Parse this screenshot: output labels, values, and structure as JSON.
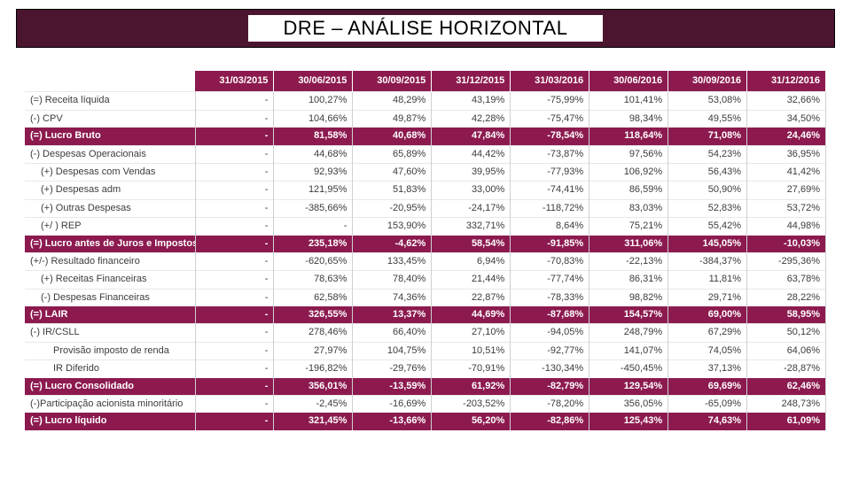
{
  "title": "DRE – ANÁLISE HORIZONTAL",
  "colors": {
    "title_bg": "#4b1530",
    "header_bg": "#8c1a4f",
    "section_bg": "#8c1a4f",
    "text": "#3c3c3c",
    "white": "#ffffff",
    "border": "#d0d0d0"
  },
  "table": {
    "columns": [
      "31/03/2015",
      "30/06/2015",
      "30/09/2015",
      "31/12/2015",
      "31/03/2016",
      "30/06/2016",
      "30/09/2016",
      "31/12/2016"
    ],
    "rows": [
      {
        "type": "normal",
        "indent": 0,
        "label": "(=) Receita líquida",
        "vals": [
          "-",
          "100,27%",
          "48,29%",
          "43,19%",
          "-75,99%",
          "101,41%",
          "53,08%",
          "32,66%"
        ]
      },
      {
        "type": "normal",
        "indent": 0,
        "label": "(-) CPV",
        "vals": [
          "-",
          "104,66%",
          "49,87%",
          "42,28%",
          "-75,47%",
          "98,34%",
          "49,55%",
          "34,50%"
        ]
      },
      {
        "type": "section",
        "indent": 0,
        "label": "(=) Lucro Bruto",
        "vals": [
          "-",
          "81,58%",
          "40,68%",
          "47,84%",
          "-78,54%",
          "118,64%",
          "71,08%",
          "24,46%"
        ]
      },
      {
        "type": "normal",
        "indent": 0,
        "label": "(-) Despesas Operacionais",
        "vals": [
          "-",
          "44,68%",
          "65,89%",
          "44,42%",
          "-73,87%",
          "97,56%",
          "54,23%",
          "36,95%"
        ]
      },
      {
        "type": "normal",
        "indent": 1,
        "label": "(+) Despesas com Vendas",
        "vals": [
          "-",
          "92,93%",
          "47,60%",
          "39,95%",
          "-77,93%",
          "106,92%",
          "56,43%",
          "41,42%"
        ]
      },
      {
        "type": "normal",
        "indent": 1,
        "label": "(+) Despesas adm",
        "vals": [
          "-",
          "121,95%",
          "51,83%",
          "33,00%",
          "-74,41%",
          "86,59%",
          "50,90%",
          "27,69%"
        ]
      },
      {
        "type": "normal",
        "indent": 1,
        "label": "(+) Outras Despesas",
        "vals": [
          "-",
          "-385,66%",
          "-20,95%",
          "-24,17%",
          "-118,72%",
          "83,03%",
          "52,83%",
          "53,72%"
        ]
      },
      {
        "type": "normal",
        "indent": 1,
        "label": "(+/ ) REP",
        "vals": [
          "-",
          "-",
          "153,90%",
          "332,71%",
          "8,64%",
          "75,21%",
          "55,42%",
          "44,98%"
        ]
      },
      {
        "type": "section",
        "indent": 0,
        "label": "(=) Lucro antes de Juros e Impostos",
        "vals": [
          "-",
          "235,18%",
          "-4,62%",
          "58,54%",
          "-91,85%",
          "311,06%",
          "145,05%",
          "-10,03%"
        ]
      },
      {
        "type": "normal",
        "indent": 0,
        "label": "(+/-) Resultado financeiro",
        "vals": [
          "-",
          "-620,65%",
          "133,45%",
          "6,94%",
          "-70,83%",
          "-22,13%",
          "-384,37%",
          "-295,36%"
        ]
      },
      {
        "type": "normal",
        "indent": 1,
        "label": "(+) Receitas Financeiras",
        "vals": [
          "-",
          "78,63%",
          "78,40%",
          "21,44%",
          "-77,74%",
          "86,31%",
          "11,81%",
          "63,78%"
        ]
      },
      {
        "type": "normal",
        "indent": 1,
        "label": "(-) Despesas Financeiras",
        "vals": [
          "-",
          "62,58%",
          "74,36%",
          "22,87%",
          "-78,33%",
          "98,82%",
          "29,71%",
          "28,22%"
        ]
      },
      {
        "type": "section",
        "indent": 0,
        "label": "(=) LAIR",
        "vals": [
          "-",
          "326,55%",
          "13,37%",
          "44,69%",
          "-87,68%",
          "154,57%",
          "69,00%",
          "58,95%"
        ]
      },
      {
        "type": "normal",
        "indent": 0,
        "label": "(-) IR/CSLL",
        "vals": [
          "-",
          "278,46%",
          "66,40%",
          "27,10%",
          "-94,05%",
          "248,79%",
          "67,29%",
          "50,12%"
        ]
      },
      {
        "type": "normal",
        "indent": 2,
        "label": "Provisão imposto de renda",
        "vals": [
          "-",
          "27,97%",
          "104,75%",
          "10,51%",
          "-92,77%",
          "141,07%",
          "74,05%",
          "64,06%"
        ]
      },
      {
        "type": "normal",
        "indent": 2,
        "label": "IR Diferido",
        "vals": [
          "-",
          "-196,82%",
          "-29,76%",
          "-70,91%",
          "-130,34%",
          "-450,45%",
          "37,13%",
          "-28,87%"
        ]
      },
      {
        "type": "section",
        "indent": 0,
        "label": "(=) Lucro Consolidado",
        "vals": [
          "-",
          "356,01%",
          "-13,59%",
          "61,92%",
          "-82,79%",
          "129,54%",
          "69,69%",
          "62,46%"
        ]
      },
      {
        "type": "normal",
        "indent": 0,
        "label": "(-)Participação acionista minoritário",
        "vals": [
          "-",
          "-2,45%",
          "-16,69%",
          "-203,52%",
          "-78,20%",
          "356,05%",
          "-65,09%",
          "248,73%"
        ]
      },
      {
        "type": "section",
        "indent": 0,
        "label": "(=) Lucro líquido",
        "vals": [
          "-",
          "321,45%",
          "-13,66%",
          "56,20%",
          "-82,86%",
          "125,43%",
          "74,63%",
          "61,09%"
        ]
      }
    ]
  }
}
